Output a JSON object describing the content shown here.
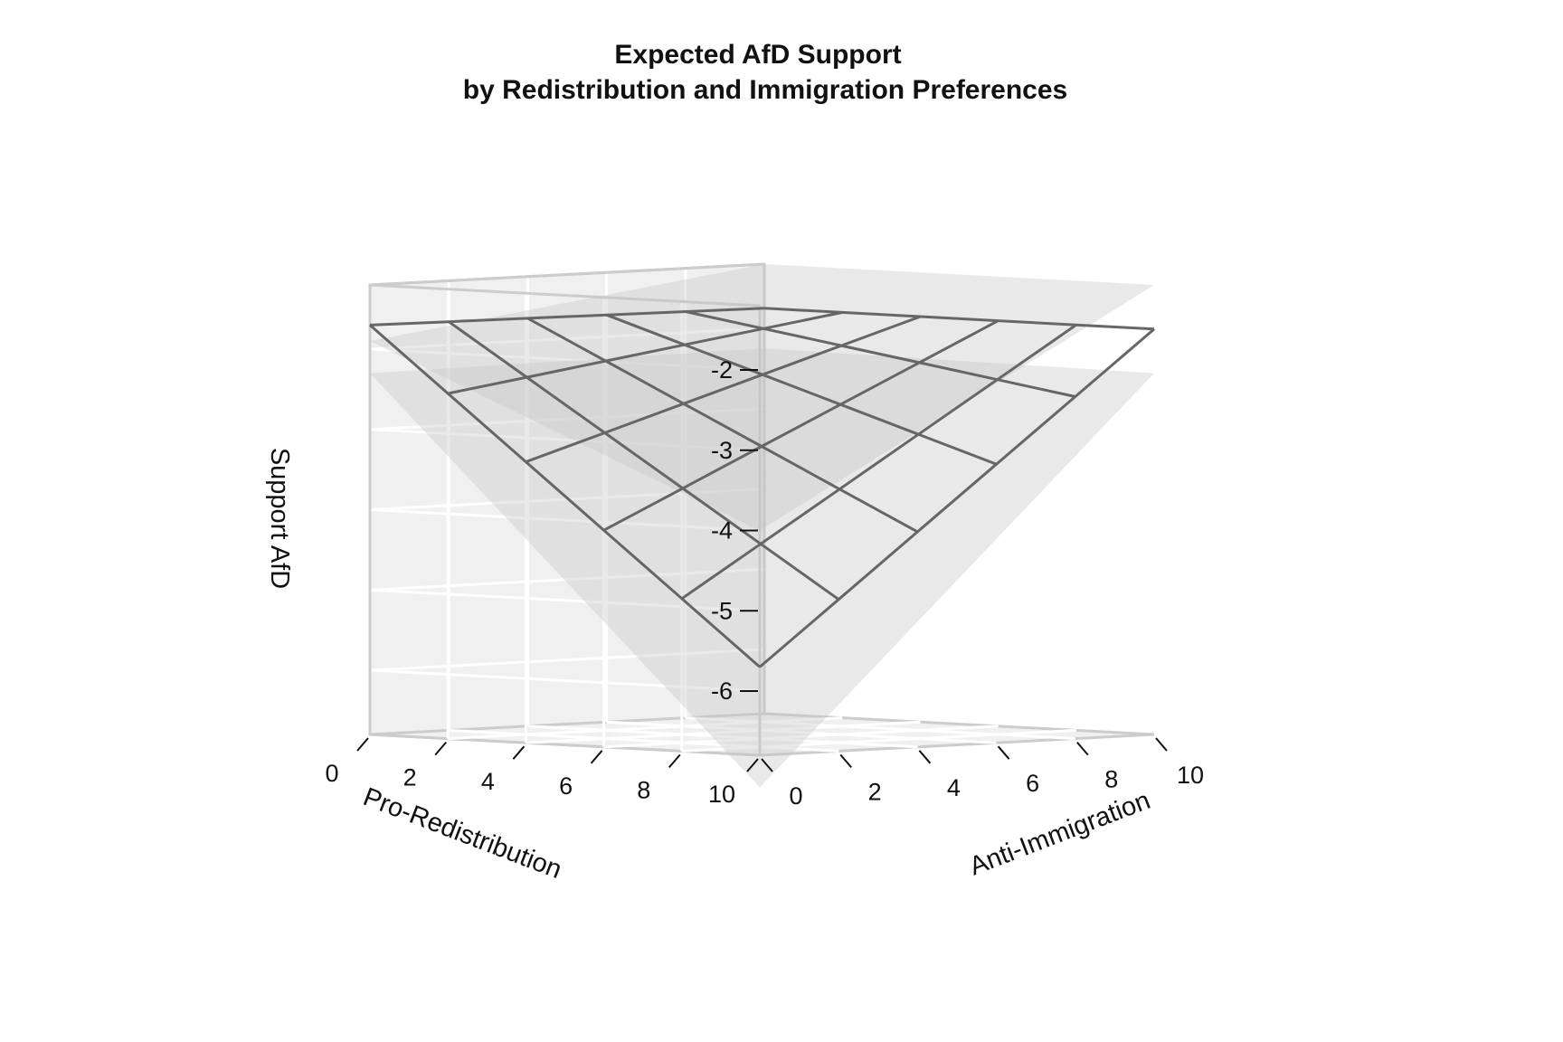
{
  "chart_data": {
    "type": "surface",
    "title": "Expected AfD Support",
    "subtitle": "by Redistribution and Immigration Preferences",
    "xlabel": "Pro-Redistribution",
    "ylabel": "Anti-Immigration",
    "zlabel": "Support AfD",
    "x_ticks": [
      0,
      2,
      4,
      6,
      8,
      10
    ],
    "y_ticks": [
      0,
      2,
      4,
      6,
      8,
      10
    ],
    "z_ticks": [
      -2,
      -3,
      -4,
      -5,
      -6
    ],
    "xlim": [
      0,
      10
    ],
    "ylim": [
      0,
      10
    ],
    "zlim": [
      -6.8,
      -1.2
    ],
    "grid": true,
    "surface_grid_x": [
      0,
      2,
      4,
      6,
      8,
      10
    ],
    "surface_grid_y": [
      0,
      2,
      4,
      6,
      8,
      10
    ],
    "corners": {
      "x0_y0": -1.7,
      "x0_y10": -1.75,
      "x10_y0": -5.7,
      "x10_y10": -1.75
    },
    "ci_upper_corners": {
      "x0_y0": -1.9,
      "x0_y10": -1.2,
      "x10_y0": -4.0,
      "x10_y10": -1.2
    },
    "ci_lower_corners": {
      "x0_y0": -2.3,
      "x0_y10": -2.25,
      "x10_y0": -7.2,
      "x10_y10": -2.3
    },
    "colors": {
      "panel": "#f0f0f0",
      "grid": "#ffffff",
      "frame": "#cccccc",
      "ci_band": "#c4c4c4",
      "surface_line": "#666666"
    }
  }
}
